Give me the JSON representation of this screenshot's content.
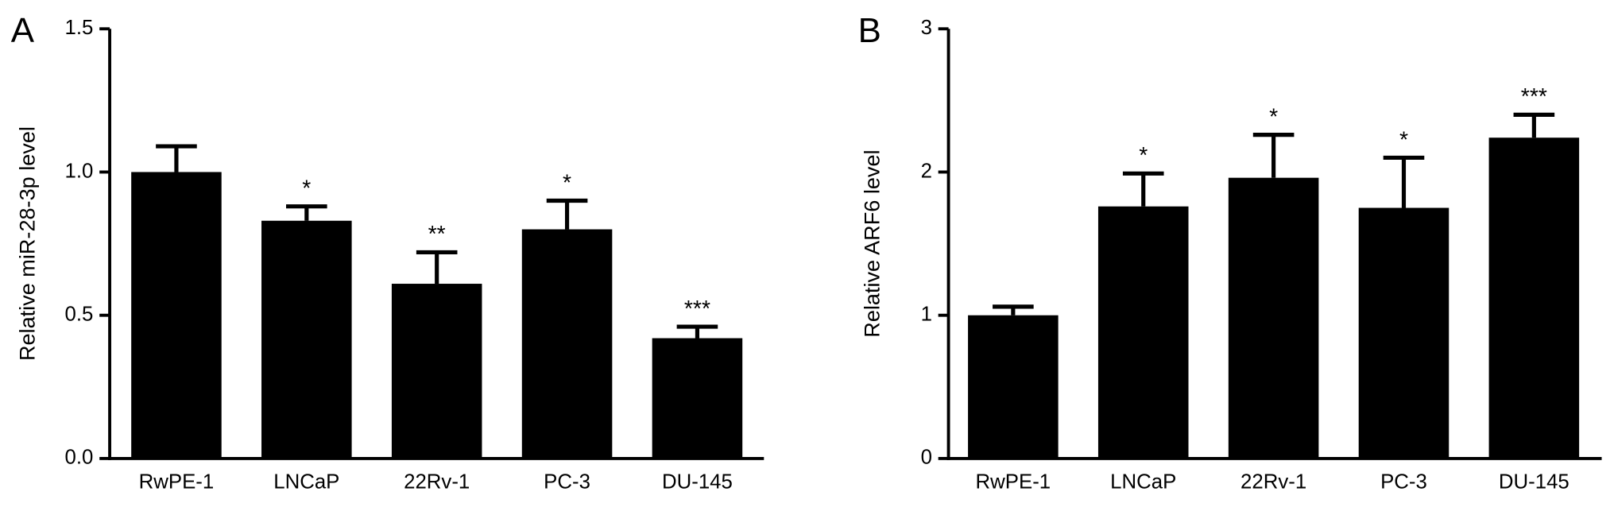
{
  "chart_data": [
    {
      "type": "bar",
      "panel_label": "A",
      "y_label": "Relative miR-28-3p level",
      "categories": [
        "RwPE-1",
        "LNCaP",
        "22Rv-1",
        "PC-3",
        "DU-145"
      ],
      "values": [
        1.0,
        0.83,
        0.61,
        0.8,
        0.42
      ],
      "errors": [
        0.09,
        0.05,
        0.11,
        0.1,
        0.04
      ],
      "annotations": [
        null,
        "*",
        "**",
        "*",
        "***"
      ],
      "color": "#000000",
      "ylim": [
        0,
        1.5
      ],
      "yticks": [
        {
          "value": 0,
          "label": "0.0"
        },
        0.5,
        {
          "value": 1,
          "label": "1.0"
        },
        1.5
      ]
    },
    {
      "type": "bar",
      "panel_label": "B",
      "y_label": "Relative ARF6 level",
      "categories": [
        "RwPE-1",
        "LNCaP",
        "22Rv-1",
        "PC-3",
        "DU-145"
      ],
      "values": [
        1.0,
        1.76,
        1.96,
        1.75,
        2.24
      ],
      "errors": [
        0.06,
        0.23,
        0.3,
        0.35,
        0.16
      ],
      "annotations": [
        null,
        "*",
        "*",
        "*",
        "***"
      ],
      "color": "#000000",
      "ylim": [
        0,
        3
      ],
      "yticks": [
        0,
        1,
        2,
        3
      ]
    }
  ]
}
